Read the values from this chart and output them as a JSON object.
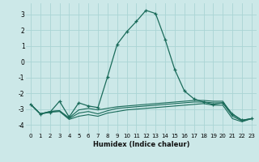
{
  "xlabel": "Humidex (Indice chaleur)",
  "x": [
    0,
    1,
    2,
    3,
    4,
    5,
    6,
    7,
    8,
    9,
    10,
    11,
    12,
    13,
    14,
    15,
    16,
    17,
    18,
    19,
    20,
    21,
    22,
    23
  ],
  "line1": [
    -2.7,
    -3.3,
    -3.2,
    -2.5,
    -3.5,
    -2.6,
    -2.8,
    -2.9,
    -0.95,
    1.1,
    1.9,
    2.55,
    3.25,
    3.05,
    1.4,
    -0.5,
    -1.85,
    -2.35,
    -2.55,
    -2.7,
    -2.6,
    -3.3,
    -3.7,
    -3.6
  ],
  "line2": [
    -2.7,
    -3.3,
    -3.15,
    -3.1,
    -3.55,
    -3.05,
    -2.95,
    -3.05,
    -2.95,
    -2.85,
    -2.8,
    -2.75,
    -2.7,
    -2.65,
    -2.6,
    -2.55,
    -2.5,
    -2.45,
    -2.45,
    -2.5,
    -2.5,
    -3.35,
    -3.7,
    -3.6
  ],
  "line3": [
    -2.7,
    -3.3,
    -3.15,
    -3.1,
    -3.6,
    -3.25,
    -3.15,
    -3.3,
    -3.1,
    -2.95,
    -2.9,
    -2.85,
    -2.8,
    -2.75,
    -2.7,
    -2.65,
    -2.6,
    -2.55,
    -2.55,
    -2.6,
    -2.6,
    -3.45,
    -3.75,
    -3.6
  ],
  "line4": [
    -2.7,
    -3.3,
    -3.2,
    -3.15,
    -3.65,
    -3.45,
    -3.35,
    -3.45,
    -3.25,
    -3.15,
    -3.05,
    -3.0,
    -2.95,
    -2.9,
    -2.85,
    -2.8,
    -2.75,
    -2.7,
    -2.65,
    -2.75,
    -2.75,
    -3.6,
    -3.8,
    -3.6
  ],
  "line_color": "#1a6b5a",
  "bg_color": "#cce8e8",
  "grid_color": "#aad4d4",
  "ylim": [
    -4.5,
    3.7
  ],
  "yticks": [
    -4,
    -3,
    -2,
    -1,
    0,
    1,
    2,
    3
  ],
  "xticks": [
    0,
    1,
    2,
    3,
    4,
    5,
    6,
    7,
    8,
    9,
    10,
    11,
    12,
    13,
    14,
    15,
    16,
    17,
    18,
    19,
    20,
    21,
    22,
    23
  ]
}
